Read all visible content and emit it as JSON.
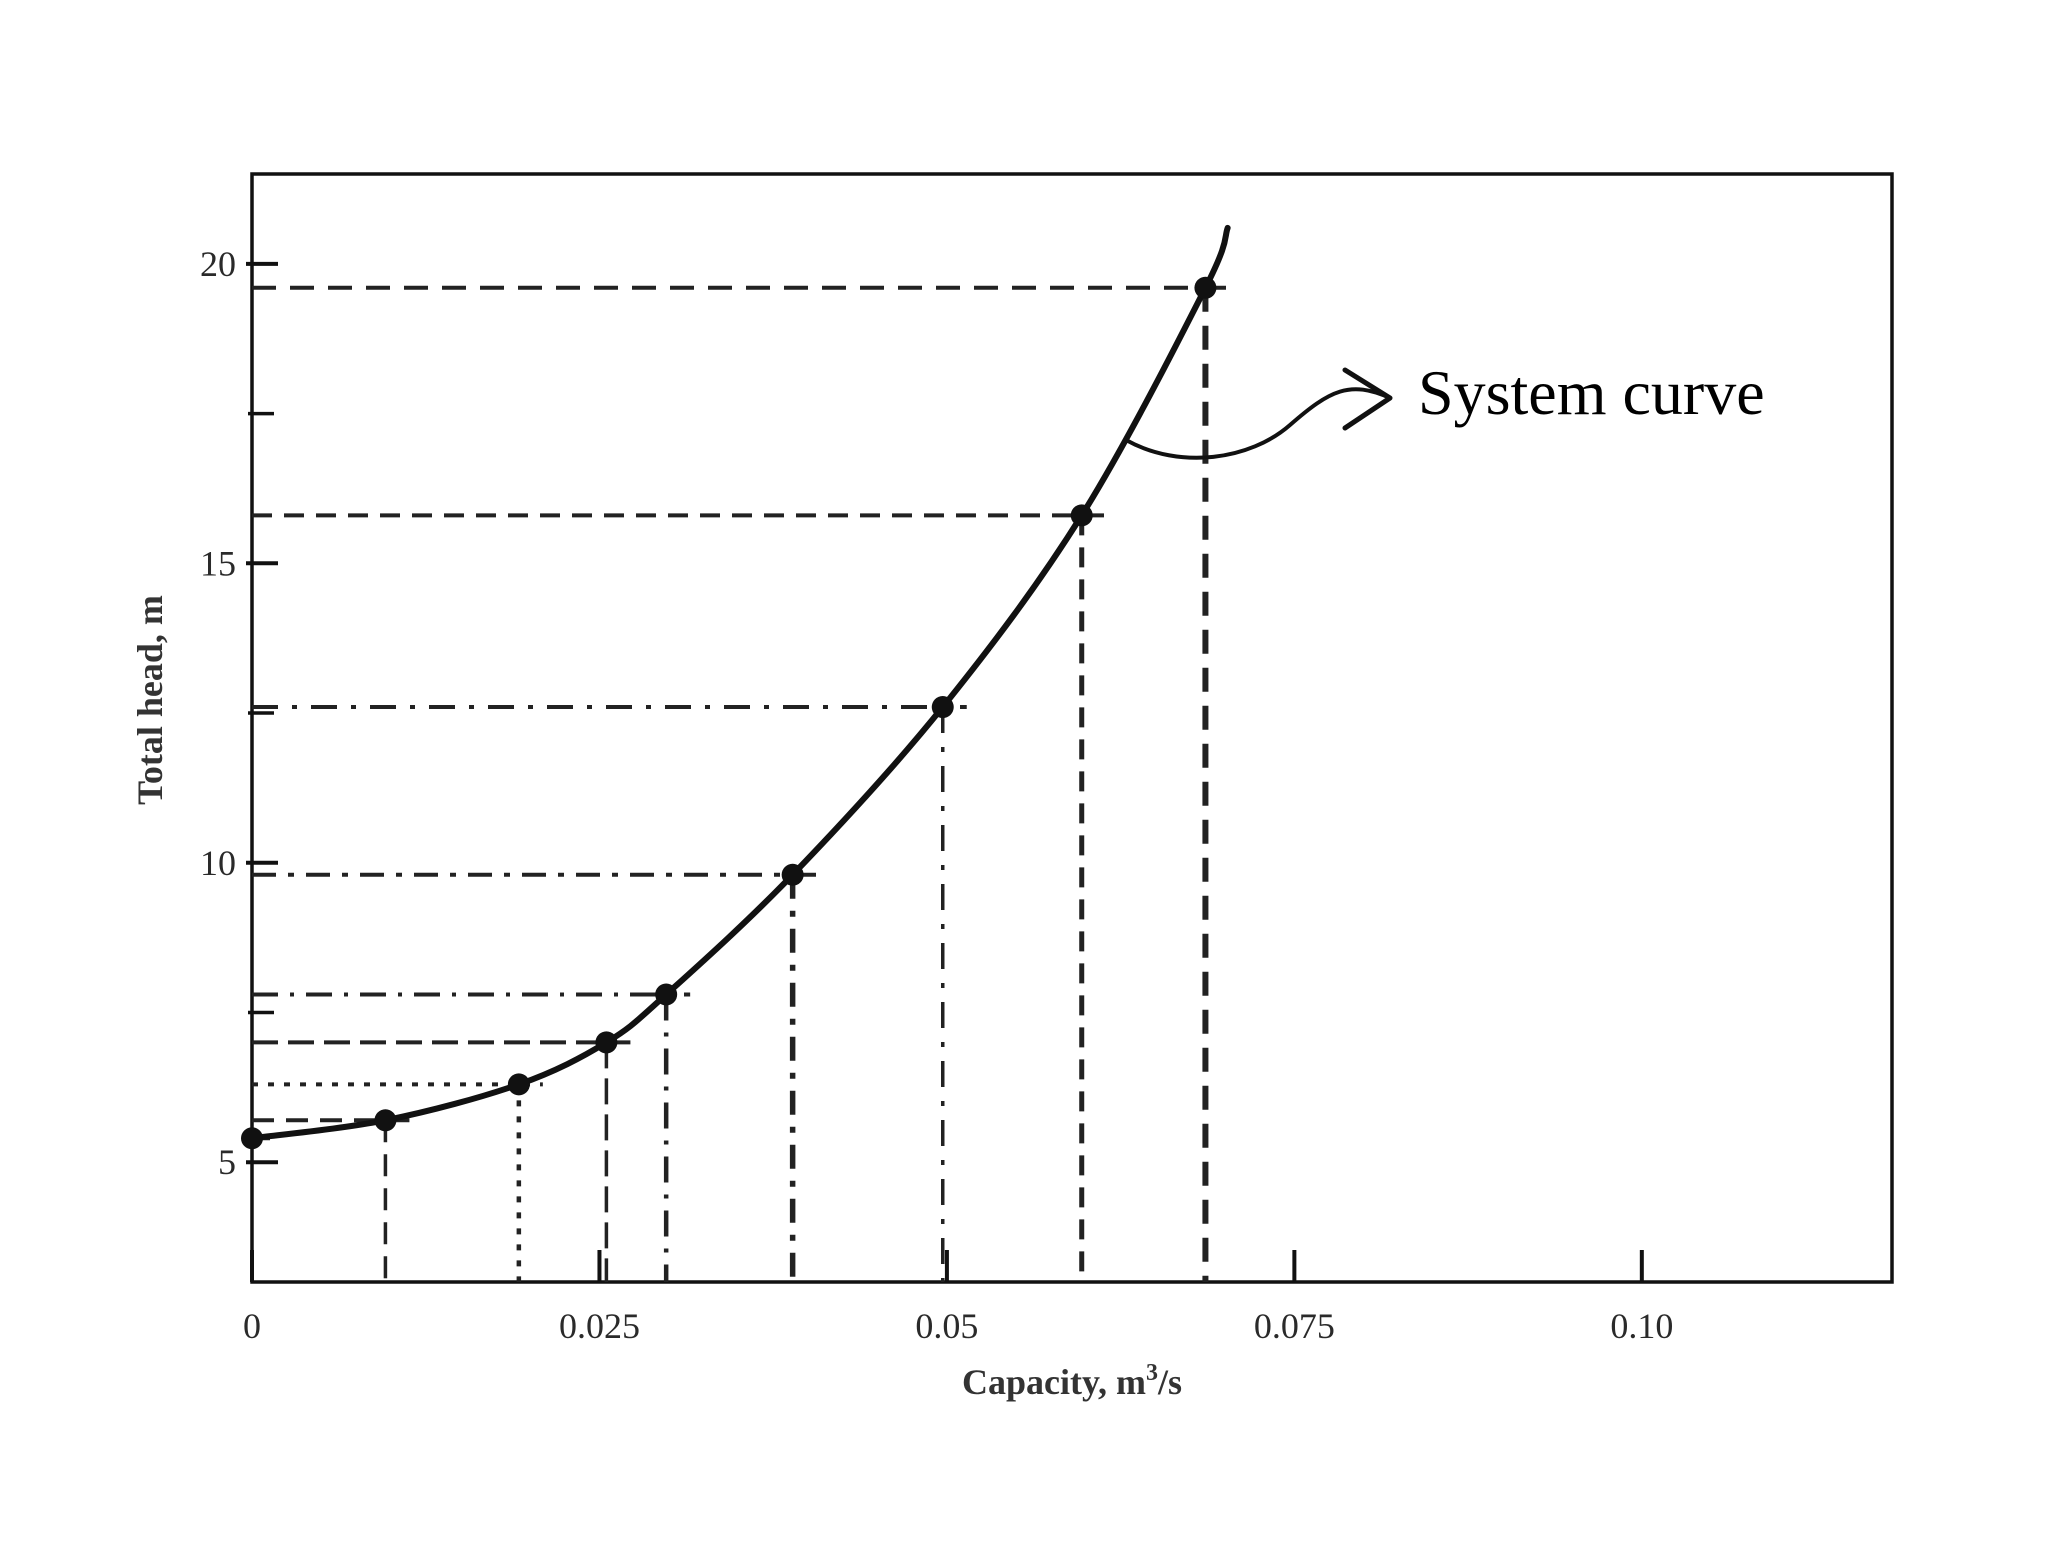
{
  "chart_data": {
    "type": "line",
    "xlabel": "Capacity, m",
    "xlabel_sup": "3",
    "xlabel_suffix": "/s",
    "ylabel": "Total head, m",
    "xlim": [
      0,
      0.118
    ],
    "ylim": [
      3,
      21.5
    ],
    "x_ticks": [
      {
        "value": 0,
        "label": "0"
      },
      {
        "value": 0.025,
        "label": "0.025"
      },
      {
        "value": 0.05,
        "label": "0.05"
      },
      {
        "value": 0.075,
        "label": "0.075"
      },
      {
        "value": 0.1,
        "label": "0.10"
      }
    ],
    "y_ticks": [
      {
        "value": 5,
        "label": "5"
      },
      {
        "value": 10,
        "label": "10"
      },
      {
        "value": 15,
        "label": "15"
      },
      {
        "value": 20,
        "label": "20"
      }
    ],
    "y_minor_ticks": [
      7.5,
      12.5,
      17.5
    ],
    "grid": false,
    "series": [
      {
        "color": "#111111",
        "x": [
          0,
          0.0096,
          0.0192,
          0.0255,
          0.0298,
          0.0389,
          0.0497,
          0.0597,
          0.0686
        ],
        "y": [
          5.4,
          5.7,
          6.3,
          7.0,
          7.8,
          9.8,
          12.6,
          15.8,
          19.6
        ],
        "curve_end": {
          "x": 0.0702,
          "y": 20.6
        }
      }
    ],
    "annotations": [
      {
        "text": "System curve"
      }
    ]
  }
}
